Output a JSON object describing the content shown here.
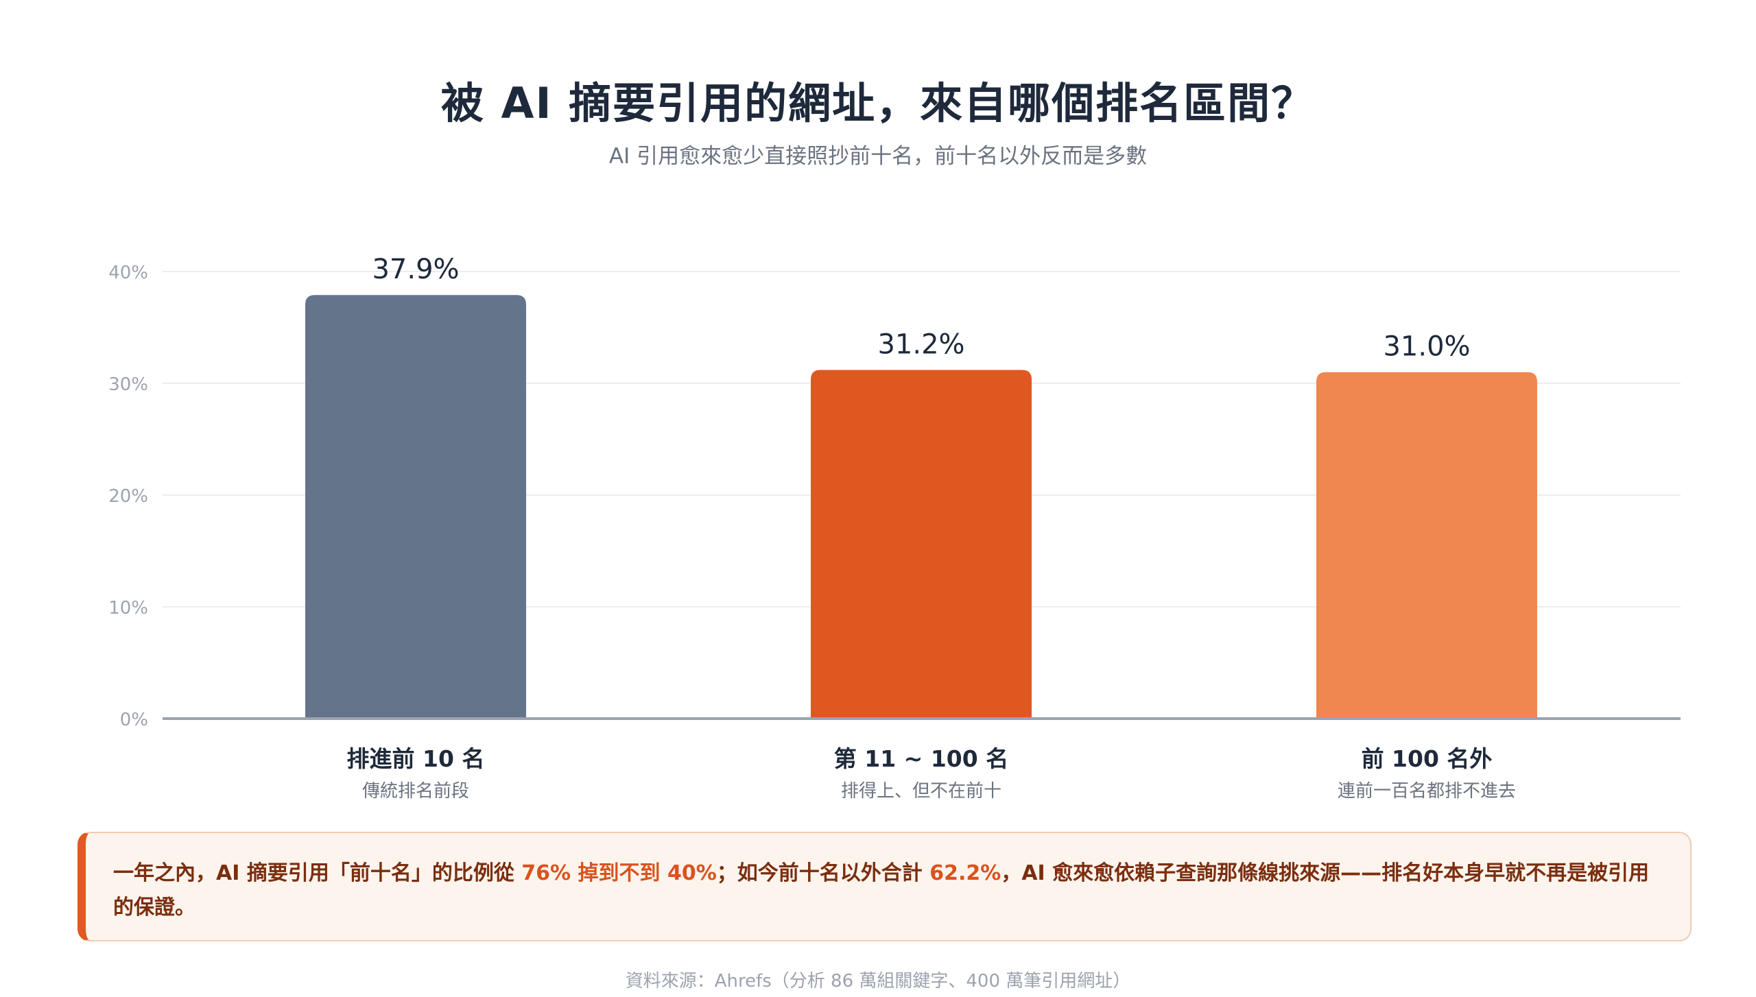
{
  "header": {
    "title": "被 AI 摘要引用的網址，來自哪個排名區間？",
    "subtitle": "AI 引用愈來愈少直接照抄前十名，前十名以外反而是多數"
  },
  "chart_data": {
    "type": "bar",
    "categories": [
      "排進前 10 名",
      "第 11 ~ 100 名",
      "前 100 名外"
    ],
    "category_sublabels": [
      "傳統排名前段",
      "排得上、但不在前十",
      "連前一百名都排不進去"
    ],
    "values": [
      37.9,
      31.2,
      31.0
    ],
    "value_labels": [
      "37.9%",
      "31.2%",
      "31.0%"
    ],
    "colors": [
      "#64748b",
      "#e0571f",
      "#f08650"
    ],
    "ylim": [
      0,
      40
    ],
    "yticks": [
      0,
      10,
      20,
      30,
      40
    ],
    "ytick_labels": [
      "0%",
      "10%",
      "20%",
      "30%",
      "40%"
    ],
    "grid": true,
    "legend": "none"
  },
  "callout": {
    "text_1": "一年之內，AI 摘要引用「前十名」的比例從 ",
    "hl_1": "76% 掉到不到 40%",
    "text_2": "；如今前十名以外合計 ",
    "hl_2": "62.2%",
    "text_3": "，AI 愈來愈依賴子查詢那條線挑來源——排名好本身早就不再是被引用的保證。",
    "accent_color": "#e05a22"
  },
  "footer": {
    "source": "資料來源：Ahrefs（分析 86 萬組關鍵字、400 萬筆引用網址）"
  }
}
